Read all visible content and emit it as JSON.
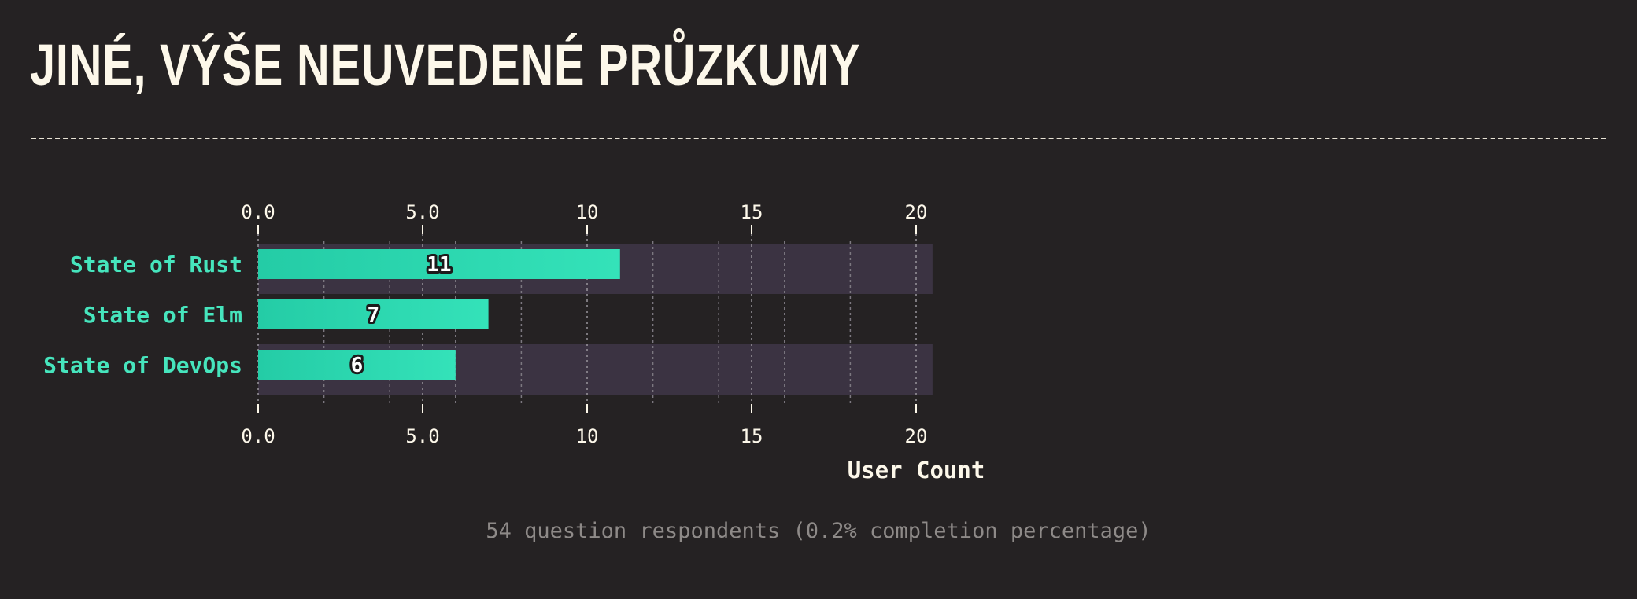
{
  "page": {
    "title": "JINÉ, VÝŠE NEUVEDENÉ PRŮZKUMY",
    "footnote": "54 question respondents (0.2% completion percentage)"
  },
  "colors": {
    "background": "#252223",
    "title": "#fdf8ea",
    "bar_start": "#24cca6",
    "bar_end": "#34e2b9",
    "band": "#3b3342",
    "category_label": "#46e5bd",
    "footnote": "#8e8a88"
  },
  "chart_data": {
    "type": "bar",
    "orientation": "horizontal",
    "categories": [
      "State of Rust",
      "State of Elm",
      "State of DevOps"
    ],
    "values": [
      11,
      7,
      6
    ],
    "xlabel": "User Count",
    "ylabel": "",
    "xlim": [
      0,
      20.5
    ],
    "ticks": [
      0,
      5,
      10,
      15,
      20
    ],
    "tick_labels": [
      "0.0",
      "5.0",
      "10",
      "15",
      "20"
    ],
    "minor_gridlines": [
      2,
      4,
      6,
      8,
      12,
      14,
      16,
      18
    ],
    "grid": true,
    "alternating_bands": true
  }
}
